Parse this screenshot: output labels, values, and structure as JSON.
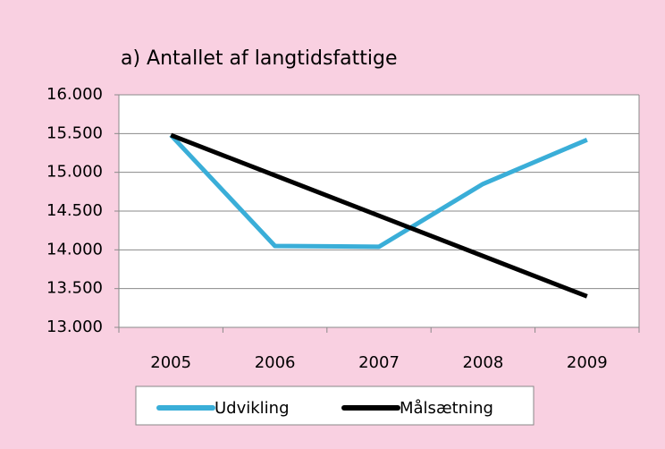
{
  "chart_data": {
    "type": "line",
    "title": "a) Antallet af langtidsfattige",
    "categories": [
      "2005",
      "2006",
      "2007",
      "2008",
      "2009"
    ],
    "series": [
      {
        "name": "Udvikling",
        "color": "#3aaed8",
        "values": [
          15480,
          14050,
          14040,
          14850,
          15420
        ]
      },
      {
        "name": "Målsætning",
        "color": "#000000",
        "values": [
          15480,
          14960,
          14440,
          13920,
          13400
        ]
      }
    ],
    "ylim": [
      13000,
      16000
    ],
    "yticks": [
      {
        "value": 13000,
        "label": "13.000"
      },
      {
        "value": 13500,
        "label": "13.500"
      },
      {
        "value": 14000,
        "label": "14.000"
      },
      {
        "value": 14500,
        "label": "14.500"
      },
      {
        "value": 15000,
        "label": "15.000"
      },
      {
        "value": 15500,
        "label": "15.500"
      },
      {
        "value": 16000,
        "label": "16.000"
      }
    ],
    "grid": true,
    "legend": "bottom"
  }
}
